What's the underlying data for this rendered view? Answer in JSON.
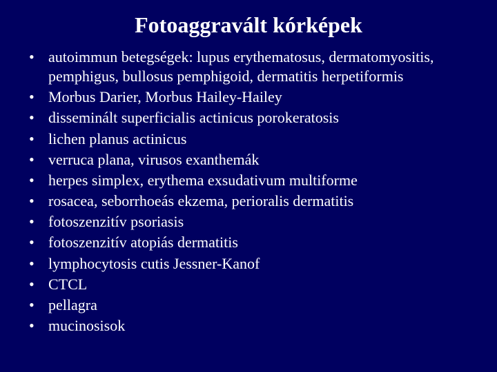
{
  "slide": {
    "background_color": "#000060",
    "text_color": "#ffffff",
    "font_family": "Times New Roman",
    "title": {
      "text": "Fotoaggravált kórképek",
      "fontsize": 32,
      "fontweight": "bold",
      "align": "center"
    },
    "bullets": {
      "fontsize": 22,
      "marker": "•",
      "items": [
        "autoimmun betegségek: lupus erythematosus, dermatomyositis, pemphigus, bullosus pemphigoid, dermatitis herpetiformis",
        "Morbus Darier, Morbus Hailey-Hailey",
        "disseminált superficialis actinicus porokeratosis",
        "lichen planus actinicus",
        "verruca plana, virusos exanthemák",
        "herpes simplex, erythema exsudativum multiforme",
        "rosacea, seborrhoeás ekzema, perioralis dermatitis",
        "fotoszenzitív psoriasis",
        "fotoszenzitív atopiás dermatitis",
        "lymphocytosis cutis Jessner-Kanof",
        "CTCL",
        "pellagra",
        "mucinosisok"
      ]
    }
  }
}
